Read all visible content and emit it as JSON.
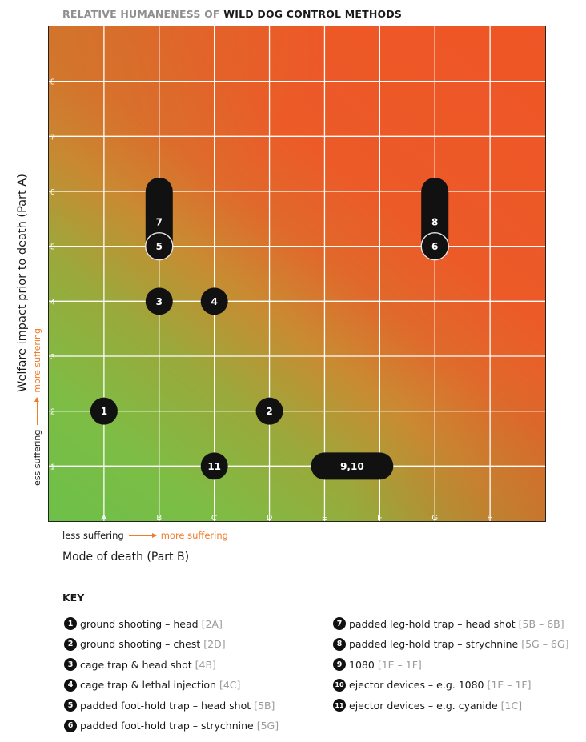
{
  "title": {
    "prefix": "RELATIVE HUMANENESS OF",
    "bold": "WILD DOG CONTROL METHODS"
  },
  "chart_data": {
    "type": "scatter",
    "title": "RELATIVE HUMANENESS OF WILD DOG CONTROL METHODS",
    "xlabel": "Mode of death (Part B)",
    "ylabel": "Welfare impact prior to death (Part A)",
    "x_categories": [
      "A",
      "B",
      "C",
      "D",
      "E",
      "F",
      "G",
      "H"
    ],
    "y_ticks": [
      "1",
      "2",
      "3",
      "4",
      "5",
      "6",
      "7",
      "8"
    ],
    "xlim": [
      0,
      9
    ],
    "ylim": [
      0,
      9
    ],
    "grid": true,
    "x_legend": {
      "low": "less suffering",
      "high": "more suffering"
    },
    "y_legend": {
      "low": "less suffering",
      "high": "more suffering"
    },
    "colors": {
      "low_suffering": "#6cc049",
      "high_suffering": "#ef5526",
      "marker": "#111111",
      "highlight": "#f07c2a"
    },
    "points": [
      {
        "label": "1",
        "x": [
          1,
          1
        ],
        "y": [
          2,
          2
        ]
      },
      {
        "label": "2",
        "x": [
          4,
          4
        ],
        "y": [
          2,
          2
        ]
      },
      {
        "label": "3",
        "x": [
          2,
          2
        ],
        "y": [
          4,
          4
        ]
      },
      {
        "label": "4",
        "x": [
          3,
          3
        ],
        "y": [
          4,
          4
        ]
      },
      {
        "label": "7",
        "x": [
          2,
          2
        ],
        "y": [
          5,
          6
        ]
      },
      {
        "label": "5",
        "x": [
          2,
          2
        ],
        "y": [
          5,
          5
        ]
      },
      {
        "label": "8",
        "x": [
          7,
          7
        ],
        "y": [
          5,
          6
        ]
      },
      {
        "label": "6",
        "x": [
          7,
          7
        ],
        "y": [
          5,
          5
        ]
      },
      {
        "label": "11",
        "x": [
          3,
          3
        ],
        "y": [
          1,
          1
        ]
      },
      {
        "label": "9,10",
        "x": [
          5,
          6
        ],
        "y": [
          1,
          1
        ]
      }
    ]
  },
  "key": {
    "title": "KEY",
    "left": [
      {
        "num": "1",
        "text": "ground shooting – head",
        "code": "[2A]"
      },
      {
        "num": "2",
        "text": "ground shooting – chest",
        "code": "[2D]"
      },
      {
        "num": "3",
        "text": "cage trap & head shot",
        "code": "[4B]"
      },
      {
        "num": "4",
        "text": "cage trap & lethal injection",
        "code": "[4C]"
      },
      {
        "num": "5",
        "text": "padded foot-hold trap – head shot",
        "code": "[5B]"
      },
      {
        "num": "6",
        "text": "padded foot-hold trap – strychnine",
        "code": "[5G]"
      }
    ],
    "right": [
      {
        "num": "7",
        "text": "padded leg-hold trap – head shot",
        "code": "[5B – 6B]"
      },
      {
        "num": "8",
        "text": "padded leg-hold trap – strychnine",
        "code": "[5G – 6G]"
      },
      {
        "num": "9",
        "text": "1080",
        "code": "[1E – 1F]"
      },
      {
        "num": "10",
        "text": "ejector devices – e.g. 1080",
        "code": "[1E – 1F]"
      },
      {
        "num": "11",
        "text": "ejector devices – e.g. cyanide",
        "code": "[1C]"
      }
    ]
  }
}
